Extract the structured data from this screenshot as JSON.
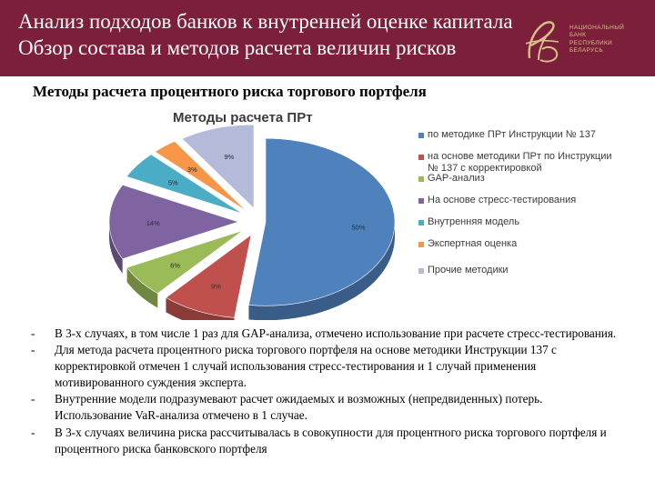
{
  "header": {
    "title_line1": "Анализ подходов банков к внутренней оценке капитала",
    "title_line2": "Обзор состава и методов расчета величин рисков",
    "logo_lines": [
      "НАЦИОНАЛЬНЫЙ",
      "БАНК",
      "РЕСПУБЛИКИ",
      "БЕЛАРУСЬ"
    ]
  },
  "subtitle": "Методы расчета процентного риска торгового портфеля",
  "chart_data": {
    "type": "pie",
    "style": "3d-exploded",
    "title": "Методы расчета ПРт",
    "legend_position": "right",
    "slices": [
      {
        "label": "по методике ПРт Инструкции № 137",
        "value": 50,
        "display": "50%",
        "color": "#4f81bd"
      },
      {
        "label": "на основе методики ПРт по Инструкции № 137 с корректировкой",
        "value": 9,
        "display": "9%",
        "color": "#c0504d"
      },
      {
        "label": "GAP-анализ",
        "value": 6,
        "display": "6%",
        "color": "#9bbb59"
      },
      {
        "label": "На основе стресс-тестирования",
        "value": 14,
        "display": "14%",
        "color": "#8064a2"
      },
      {
        "label": "Внутренняя модель",
        "value": 5,
        "display": "5%",
        "color": "#4bacc6"
      },
      {
        "label": "Экспертная оценка",
        "value": 3,
        "display": "3%",
        "color": "#f79646"
      },
      {
        "label": "Прочие методики",
        "value": 9,
        "display": "9%",
        "color": "#b3bbd9"
      }
    ]
  },
  "bullets": [
    {
      "dash": "-",
      "text": "В 3-х случаях, в том числе 1 раз для GAP-анализа, отмечено использование при расчете стресс-тестирования."
    },
    {
      "dash": "-",
      "text": "Для метода расчета процентного риска торгового портфеля на основе методики Инструкции 137 с корректировкой отмечен 1 случай использования стресс-тестирования и 1 случай применения мотивированного суждения эксперта."
    },
    {
      "dash": "-",
      "text": "Внутренние модели подразумевают расчет ожидаемых и возможных (непредвиденных) потерь. Использование VaR-анализа отмечено в 1 случае."
    },
    {
      "dash": "-",
      "text": "В 3-х случаях величина риска рассчитывалась в совокупности для процентного риска торгового портфеля и процентного риска банковского портфеля"
    }
  ]
}
